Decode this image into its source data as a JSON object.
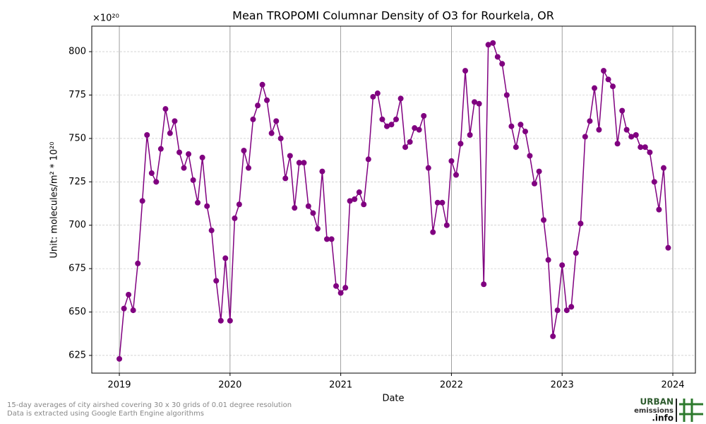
{
  "chart_data": {
    "type": "line",
    "title": "Mean TROPOMI Columnar Density of O3 for Rourkela, OR",
    "offset_text": "×10²⁰",
    "xlabel": "Date",
    "ylabel": "Unit: molecules/m² * 10²⁰",
    "footnote": [
      "15-day averages of city airshed covering 30 x 30 grids of 0.01 degree resolution",
      "Data is extracted using Google Earth Engine algorithms"
    ],
    "logo": [
      "URBAN",
      "emissions",
      ".info"
    ],
    "xlim": [
      2018.751,
      2024.204
    ],
    "xticks": [
      2019,
      2020,
      2021,
      2022,
      2023,
      2024
    ],
    "ylim": [
      614.8,
      814.7
    ],
    "yticks": [
      625,
      650,
      675,
      700,
      725,
      750,
      775,
      800
    ],
    "grid": true,
    "series": [
      {
        "color": "#800080",
        "x": [
          2019.0,
          2019.042,
          2019.083,
          2019.125,
          2019.167,
          2019.208,
          2019.25,
          2019.292,
          2019.333,
          2019.375,
          2019.417,
          2019.458,
          2019.5,
          2019.542,
          2019.583,
          2019.625,
          2019.667,
          2019.708,
          2019.75,
          2019.792,
          2019.833,
          2019.875,
          2019.917,
          2019.958,
          2020.0,
          2020.042,
          2020.083,
          2020.125,
          2020.167,
          2020.208,
          2020.25,
          2020.292,
          2020.333,
          2020.375,
          2020.417,
          2020.458,
          2020.5,
          2020.542,
          2020.583,
          2020.625,
          2020.667,
          2020.708,
          2020.75,
          2020.792,
          2020.833,
          2020.875,
          2020.917,
          2020.958,
          2021.0,
          2021.042,
          2021.083,
          2021.125,
          2021.167,
          2021.208,
          2021.25,
          2021.292,
          2021.333,
          2021.375,
          2021.417,
          2021.458,
          2021.5,
          2021.542,
          2021.583,
          2021.625,
          2021.667,
          2021.708,
          2021.75,
          2021.792,
          2021.833,
          2021.875,
          2021.917,
          2021.958,
          2022.0,
          2022.042,
          2022.083,
          2022.125,
          2022.167,
          2022.208,
          2022.25,
          2022.292,
          2022.333,
          2022.375,
          2022.417,
          2022.458,
          2022.5,
          2022.542,
          2022.583,
          2022.625,
          2022.667,
          2022.708,
          2022.75,
          2022.792,
          2022.833,
          2022.875,
          2022.917,
          2022.958,
          2023.0,
          2023.042,
          2023.083,
          2023.125,
          2023.167,
          2023.208,
          2023.25,
          2023.292,
          2023.333,
          2023.375,
          2023.417,
          2023.458,
          2023.5,
          2023.542,
          2023.583,
          2023.625,
          2023.667,
          2023.708,
          2023.75,
          2023.792,
          2023.833,
          2023.875,
          2023.917,
          2023.958
        ],
        "values": [
          623,
          652,
          660,
          651,
          678,
          714,
          752,
          730,
          725,
          744,
          767,
          753,
          760,
          742,
          733,
          741,
          726,
          713,
          739,
          711,
          697,
          668,
          645,
          681,
          645,
          704,
          712,
          743,
          733,
          761,
          769,
          781,
          772,
          753,
          760,
          750,
          727,
          740,
          710,
          736,
          736,
          711,
          707,
          698,
          731,
          692,
          692,
          665,
          661,
          664,
          714,
          715,
          719,
          712,
          738,
          774,
          776,
          761,
          757,
          758,
          761,
          773,
          745,
          748,
          756,
          755,
          763,
          733,
          696,
          713,
          713,
          700,
          737,
          729,
          747,
          789,
          752,
          771,
          770,
          666,
          804,
          805,
          797,
          793,
          775,
          757,
          745,
          758,
          754,
          740,
          724,
          731,
          703,
          680,
          636,
          651,
          677,
          651,
          653,
          684,
          701,
          751,
          760,
          779,
          755,
          789,
          784,
          780,
          747,
          766,
          755,
          751,
          752,
          745,
          745,
          742,
          725,
          709,
          733,
          687
        ]
      }
    ]
  }
}
